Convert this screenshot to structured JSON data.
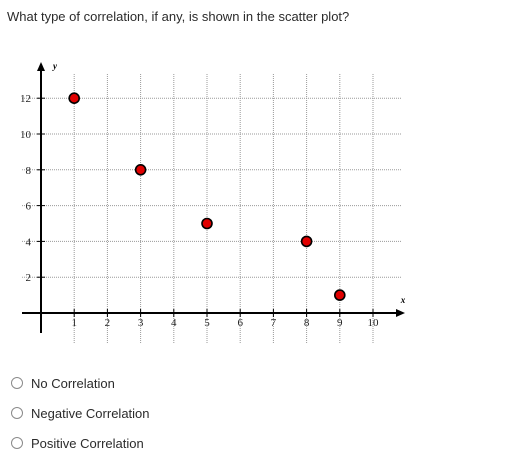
{
  "question": {
    "text": "What type of correlation, if any, is shown in the scatter plot?"
  },
  "chart_data": {
    "type": "scatter",
    "xlabel": "x",
    "ylabel": "y",
    "xlim": [
      0,
      11
    ],
    "ylim": [
      0,
      13
    ],
    "x_ticks": [
      1,
      2,
      3,
      4,
      5,
      6,
      7,
      8,
      9,
      10
    ],
    "y_ticks": [
      2,
      4,
      6,
      8,
      10,
      12
    ],
    "x_tick_labels": [
      "1",
      "2",
      "3",
      "4",
      "5",
      "6",
      "7",
      "8",
      "9",
      "10"
    ],
    "y_tick_labels": [
      "2",
      "4",
      "6",
      "8",
      "10",
      "12"
    ],
    "grid": true,
    "point_color": "#e00000",
    "points": [
      {
        "x": 1,
        "y": 12
      },
      {
        "x": 3,
        "y": 8
      },
      {
        "x": 5,
        "y": 5
      },
      {
        "x": 8,
        "y": 4
      },
      {
        "x": 9,
        "y": 1
      }
    ]
  },
  "choices": [
    {
      "label": "No Correlation"
    },
    {
      "label": "Negative Correlation"
    },
    {
      "label": "Positive Correlation"
    }
  ]
}
